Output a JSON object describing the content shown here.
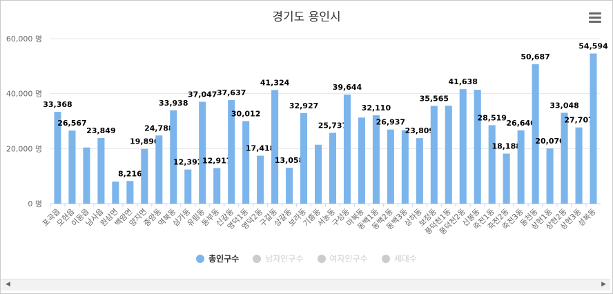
{
  "title": "경기도 용인시",
  "menu_icon": "hamburger-menu-icon",
  "colors": {
    "bar": "#7cb5ec",
    "inactive": "#cccccc",
    "grid": "#e6e6e6",
    "label": "#000000",
    "axis_text": "#666666"
  },
  "legend": [
    {
      "label": "총인구수",
      "active": true
    },
    {
      "label": "남자인구수",
      "active": false
    },
    {
      "label": "여자인구수",
      "active": false
    },
    {
      "label": "세대수",
      "active": false
    }
  ],
  "scrollbar": {
    "left_icon": "scroll-left-icon",
    "right_icon": "scroll-right-icon",
    "left_glyph": "◀",
    "right_glyph": "▶"
  },
  "chart_data": {
    "type": "bar",
    "title": "경기도 용인시",
    "series_name": "총인구수",
    "ylim": [
      0,
      60000
    ],
    "yticks": [
      {
        "value": 0,
        "label": "0 명"
      },
      {
        "value": 20000,
        "label": "20,000 명"
      },
      {
        "value": 40000,
        "label": "40,000 명"
      },
      {
        "value": 60000,
        "label": "60,000 명"
      }
    ],
    "categories": [
      "포곡읍",
      "모현읍",
      "이동읍",
      "남사읍",
      "원삼면",
      "백암면",
      "양지면",
      "중앙동",
      "역북동",
      "삼가동",
      "유림동",
      "동부동",
      "신갈동",
      "영덕1동",
      "영덕2동",
      "구갈동",
      "상갈동",
      "보라동",
      "기흥동",
      "서농동",
      "구성동",
      "마북동",
      "동백1동",
      "동백2동",
      "동백3동",
      "상하동",
      "보정동",
      "풍덕천1동",
      "풍덕천2동",
      "신봉동",
      "죽전1동",
      "죽전2동",
      "죽전3동",
      "동천동",
      "상현1동",
      "상현2동",
      "상현3동",
      "성복동"
    ],
    "values": [
      33368,
      26567,
      20400,
      23849,
      8000,
      8216,
      19896,
      24788,
      33938,
      12392,
      37047,
      12917,
      37637,
      30012,
      17418,
      41324,
      13058,
      32927,
      21400,
      25737,
      39644,
      31300,
      32110,
      26937,
      26700,
      23809,
      35565,
      35600,
      41638,
      41400,
      28519,
      18188,
      26640,
      50687,
      20070,
      33048,
      27707,
      54594
    ],
    "labels": [
      "33,368",
      "26,567",
      "",
      "23,849",
      "",
      "8,216",
      "19,896",
      "24,788",
      "33,938",
      "12,392",
      "37,047",
      "12,917",
      "37,637",
      "30,012",
      "17,418",
      "41,324",
      "13,058",
      "32,927",
      "",
      "25,737",
      "39,644",
      "",
      "32,110",
      "26,937",
      "",
      "23,809",
      "35,565",
      "",
      "41,638",
      "",
      "28,519",
      "18,188",
      "26,640",
      "50,687",
      "20,070",
      "33,048",
      "27,707",
      "54,594"
    ]
  }
}
